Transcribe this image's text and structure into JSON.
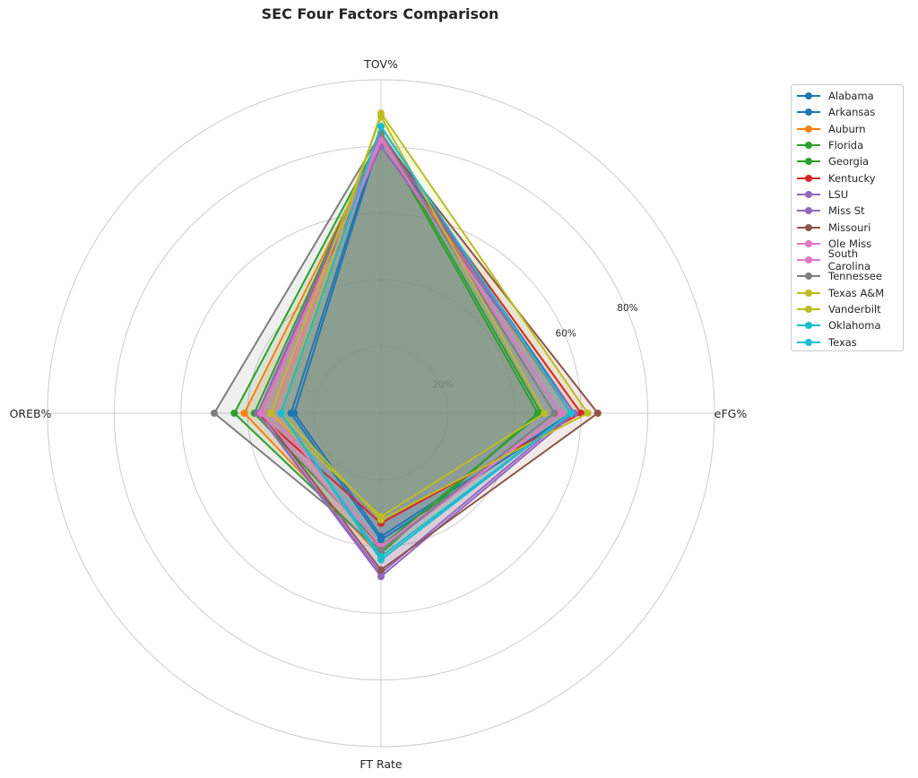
{
  "chart_data": {
    "type": "radar",
    "title": "SEC Four Factors Comparison",
    "axes": [
      "eFG%",
      "TOV%",
      "OREB%",
      "FT Rate"
    ],
    "radial_ticks": [
      "20%",
      "60%",
      "80%"
    ],
    "rmax": 100,
    "grid": true,
    "legend_position": "right",
    "series": [
      {
        "name": "Alabama",
        "color": "#1f77b4",
        "values": [
          57,
          83,
          26,
          37
        ]
      },
      {
        "name": "Arkansas",
        "color": "#1f77b4",
        "values": [
          58,
          84,
          27,
          38
        ]
      },
      {
        "name": "Auburn",
        "color": "#ff7f0e",
        "values": [
          57,
          82,
          41,
          43
        ]
      },
      {
        "name": "Florida",
        "color": "#2ca02c",
        "values": [
          47,
          83,
          44,
          42
        ]
      },
      {
        "name": "Georgia",
        "color": "#2ca02c",
        "values": [
          48,
          84,
          38,
          40
        ]
      },
      {
        "name": "Kentucky",
        "color": "#d62728",
        "values": [
          60,
          83,
          37,
          33
        ]
      },
      {
        "name": "LSU",
        "color": "#9467bd",
        "values": [
          57,
          84,
          37,
          48
        ]
      },
      {
        "name": "Miss St",
        "color": "#9467bd",
        "values": [
          58,
          80,
          37,
          49
        ]
      },
      {
        "name": "Missouri",
        "color": "#8c564b",
        "values": [
          65,
          83,
          36,
          47
        ]
      },
      {
        "name": "Ole Miss",
        "color": "#e377c2",
        "values": [
          54,
          83,
          36,
          41
        ]
      },
      {
        "name": "South Carolina",
        "color": "#e377c2",
        "values": [
          54,
          82,
          33,
          40
        ]
      },
      {
        "name": "Tennessee",
        "color": "#7f7f7f",
        "values": [
          52,
          84,
          50,
          41
        ]
      },
      {
        "name": "Texas A&M",
        "color": "#bcbd22",
        "values": [
          62,
          90,
          30,
          32
        ]
      },
      {
        "name": "Vanderbilt",
        "color": "#bcbd22",
        "values": [
          49,
          89,
          33,
          31
        ]
      },
      {
        "name": "Oklahoma",
        "color": "#17becf",
        "values": [
          57,
          86,
          30,
          44
        ]
      },
      {
        "name": "Texas",
        "color": "#17becf",
        "values": [
          57,
          86,
          30,
          43
        ]
      }
    ]
  }
}
